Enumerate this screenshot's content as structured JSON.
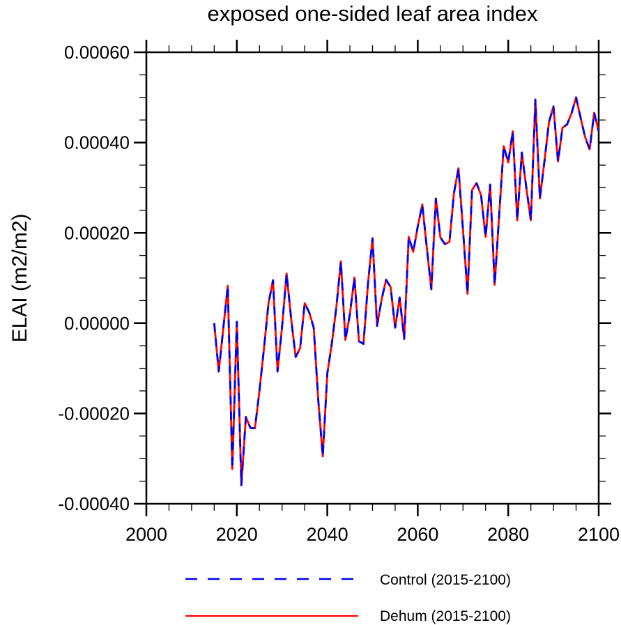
{
  "title": "exposed one-sided leaf area index",
  "axes": {
    "ylabel": "ELAI  (m2/m2)",
    "xlim": [
      2000,
      2100
    ],
    "ylim": [
      -0.0004,
      0.0006
    ],
    "x_ticks_major": [
      2000,
      2020,
      2040,
      2060,
      2080,
      2100
    ],
    "x_tick_labels": [
      "2000",
      "2020",
      "2040",
      "2060",
      "2080",
      "2100"
    ],
    "x_minor_step": 5,
    "y_ticks_major": [
      0.0006,
      0.0004,
      0.0002,
      0.0,
      -0.0002,
      -0.0004
    ],
    "y_tick_labels": [
      "0.00060",
      "0.00040",
      "0.00020",
      "0.00000",
      "-0.00020",
      "-0.00040"
    ],
    "y_minor_step": 5e-05,
    "grid": "off",
    "frame_color": "#000000"
  },
  "legend": {
    "position": "below-plot",
    "items": [
      {
        "label": "Control (2015-2100)",
        "color": "#0000ee",
        "style": "dashed"
      },
      {
        "label": "Dehum (2015-2100)",
        "color": "#ff0000",
        "style": "solid"
      }
    ]
  },
  "chart_data": {
    "type": "line",
    "title": "exposed one-sided leaf area index",
    "xlabel": "",
    "ylabel": "ELAI  (m2/m2)",
    "xlim": [
      2000,
      2100
    ],
    "ylim": [
      -0.0004,
      0.0006
    ],
    "legend_position": "bottom",
    "x": [
      2015,
      2016,
      2017,
      2018,
      2019,
      2020,
      2021,
      2022,
      2023,
      2024,
      2025,
      2026,
      2027,
      2028,
      2029,
      2030,
      2031,
      2032,
      2033,
      2034,
      2035,
      2036,
      2037,
      2038,
      2039,
      2040,
      2041,
      2042,
      2043,
      2044,
      2045,
      2046,
      2047,
      2048,
      2049,
      2050,
      2051,
      2052,
      2053,
      2054,
      2055,
      2056,
      2057,
      2058,
      2059,
      2060,
      2061,
      2062,
      2063,
      2064,
      2065,
      2066,
      2067,
      2068,
      2069,
      2070,
      2071,
      2072,
      2073,
      2074,
      2075,
      2076,
      2077,
      2078,
      2079,
      2080,
      2081,
      2082,
      2083,
      2084,
      2085,
      2086,
      2087,
      2088,
      2089,
      2090,
      2091,
      2092,
      2093,
      2094,
      2095,
      2096,
      2097,
      2098,
      2099,
      2100
    ],
    "series": [
      {
        "name": "Control (2015-2100)",
        "color": "#0000ee",
        "line_style": "dashed",
        "values": [
          0.0,
          -0.000107,
          -1.2e-05,
          8.3e-05,
          -0.000323,
          3e-06,
          -0.000359,
          -0.000208,
          -0.000232,
          -0.000233,
          -0.00015,
          -5.6e-05,
          4.4e-05,
          9.5e-05,
          -0.000107,
          -8e-06,
          0.00011,
          1.1e-05,
          -7.5e-05,
          -5.5e-05,
          4.4e-05,
          2.4e-05,
          -1e-05,
          -0.00017,
          -0.000295,
          -0.000112,
          -4.5e-05,
          3.5e-05,
          0.000137,
          -3.7e-05,
          2e-05,
          0.000101,
          -4e-05,
          -4.6e-05,
          8.8e-05,
          0.000188,
          -6e-06,
          5.2e-05,
          9.6e-05,
          8e-05,
          -1e-05,
          5.7e-05,
          -3.5e-05,
          0.000191,
          0.000158,
          0.000214,
          0.000263,
          0.000167,
          7.5e-05,
          0.000276,
          0.00019,
          0.000175,
          0.00018,
          0.000288,
          0.000343,
          0.000207,
          6.5e-05,
          0.000295,
          0.00031,
          0.000283,
          0.000191,
          0.000307,
          8.5e-05,
          0.00024,
          0.000392,
          0.000356,
          0.000425,
          0.000228,
          0.000378,
          0.0003,
          0.000228,
          0.000495,
          0.000276,
          0.000358,
          0.000445,
          0.00048,
          0.000358,
          0.000433,
          0.00044,
          0.000465,
          0.0005,
          0.000455,
          0.000412,
          0.000385,
          0.000466,
          0.000425
        ]
      },
      {
        "name": "Dehum (2015-2100)",
        "color": "#ff0000",
        "line_style": "solid",
        "values": [
          0.0,
          -0.000107,
          -1.2e-05,
          8.3e-05,
          -0.000323,
          3e-06,
          -0.000359,
          -0.000208,
          -0.000232,
          -0.000233,
          -0.00015,
          -5.6e-05,
          4.4e-05,
          9.5e-05,
          -0.000107,
          -8e-06,
          0.00011,
          1.1e-05,
          -7.5e-05,
          -5.5e-05,
          4.4e-05,
          2.4e-05,
          -1e-05,
          -0.00017,
          -0.000295,
          -0.000112,
          -4.5e-05,
          3.5e-05,
          0.000137,
          -3.7e-05,
          2e-05,
          0.000101,
          -4e-05,
          -4.6e-05,
          8.8e-05,
          0.000188,
          -6e-06,
          5.2e-05,
          9.6e-05,
          8e-05,
          -1e-05,
          5.7e-05,
          -3.5e-05,
          0.000191,
          0.000158,
          0.000214,
          0.000263,
          0.000167,
          7.5e-05,
          0.000276,
          0.00019,
          0.000175,
          0.00018,
          0.000288,
          0.000343,
          0.000207,
          6.5e-05,
          0.000295,
          0.00031,
          0.000283,
          0.000191,
          0.000307,
          8.5e-05,
          0.00024,
          0.000392,
          0.000356,
          0.000425,
          0.000228,
          0.000378,
          0.0003,
          0.000228,
          0.000495,
          0.000276,
          0.000358,
          0.000445,
          0.00048,
          0.000358,
          0.000433,
          0.00044,
          0.000465,
          0.0005,
          0.000455,
          0.000412,
          0.000385,
          0.000466,
          0.000425
        ]
      }
    ],
    "note": "Control (blue dashed) and Dehum (red solid) overlap exactly"
  }
}
